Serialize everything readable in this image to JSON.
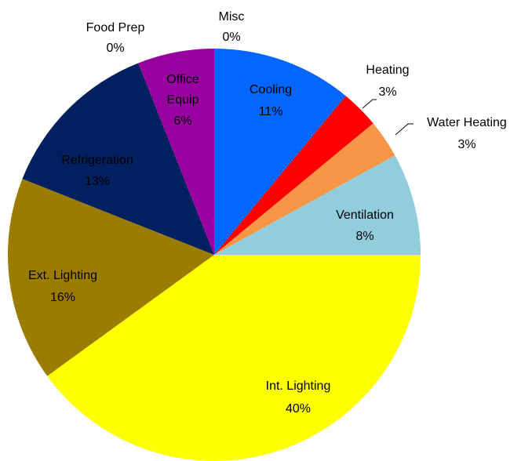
{
  "chart_data": {
    "type": "pie",
    "categories": [
      "Misc",
      "Cooling",
      "Heating",
      "Water Heating",
      "Ventilation",
      "Int. Lighting",
      "Ext. Lighting",
      "Refrigeration",
      "Food Prep",
      "Office Equip"
    ],
    "values": [
      0,
      11,
      3,
      3,
      8,
      40,
      16,
      13,
      0,
      6
    ],
    "value_labels": [
      "0%",
      "11%",
      "3%",
      "3%",
      "8%",
      "40%",
      "16%",
      "13%",
      "0%",
      "6%"
    ],
    "colors": [
      "#7030a0",
      "#0066ff",
      "#ff0000",
      "#f79646",
      "#92cddc",
      "#ffff00",
      "#9c7c00",
      "#002060",
      "#963c14",
      "#9900a0"
    ]
  }
}
